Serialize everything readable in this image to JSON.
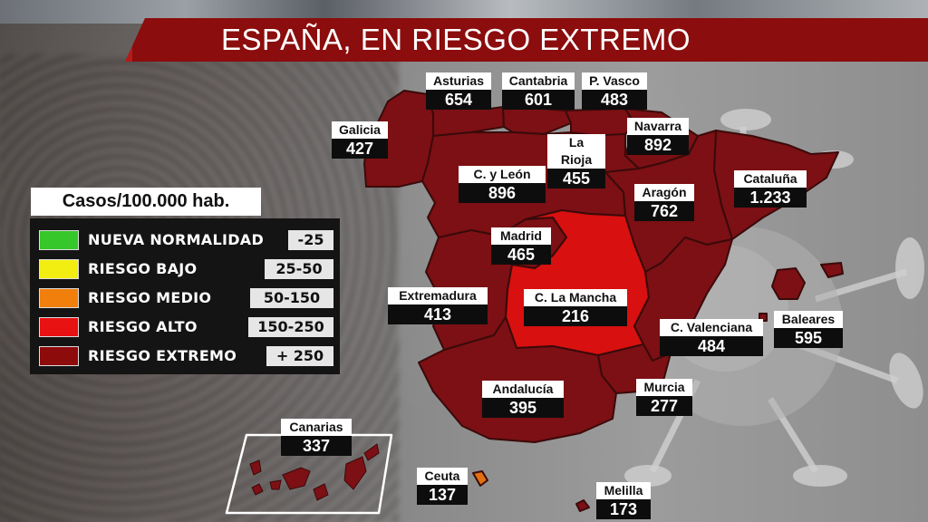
{
  "title": "ESPAÑA, EN RIESGO EXTREMO",
  "legend": {
    "heading": "Casos/100.000 hab.",
    "items": [
      {
        "label": "NUEVA NORMALIDAD",
        "range": "-25",
        "color": "#36c72a"
      },
      {
        "label": "RIESGO BAJO",
        "range": "25-50",
        "color": "#f2ee12"
      },
      {
        "label": "RIESGO MEDIO",
        "range": "50-150",
        "color": "#f07f0c"
      },
      {
        "label": "RIESGO ALTO",
        "range": "150-250",
        "color": "#e81212"
      },
      {
        "label": "RIESGO EXTREMO",
        "range": "+ 250",
        "color": "#8e0b0b"
      }
    ]
  },
  "colors": {
    "extremo": "#7c1014",
    "alto": "#d8100f",
    "medio": "#e07010",
    "border": "#3a0a0a",
    "title_bar": "#8b0d0d"
  },
  "regions": {
    "asturias": {
      "name": "Asturias",
      "value": "654"
    },
    "cantabria": {
      "name": "Cantabria",
      "value": "601"
    },
    "pvasco": {
      "name": "P. Vasco",
      "value": "483"
    },
    "galicia": {
      "name": "Galicia",
      "value": "427"
    },
    "navarra": {
      "name": "Navarra",
      "value": "892"
    },
    "larioja": {
      "name": "La Rioja",
      "value": "455"
    },
    "cyleon": {
      "name": "C. y León",
      "value": "896"
    },
    "cataluna": {
      "name": "Cataluña",
      "value": "1.233"
    },
    "aragon": {
      "name": "Aragón",
      "value": "762"
    },
    "madrid": {
      "name": "Madrid",
      "value": "465"
    },
    "extremadura": {
      "name": "Extremadura",
      "value": "413"
    },
    "clamancha": {
      "name": "C. La Mancha",
      "value": "216"
    },
    "cvalenciana": {
      "name": "C. Valenciana",
      "value": "484"
    },
    "baleares": {
      "name": "Baleares",
      "value": "595"
    },
    "andalucia": {
      "name": "Andalucía",
      "value": "395"
    },
    "murcia": {
      "name": "Murcia",
      "value": "277"
    },
    "canarias": {
      "name": "Canarias",
      "value": "337"
    },
    "ceuta": {
      "name": "Ceuta",
      "value": "137"
    },
    "melilla": {
      "name": "Melilla",
      "value": "173"
    }
  }
}
